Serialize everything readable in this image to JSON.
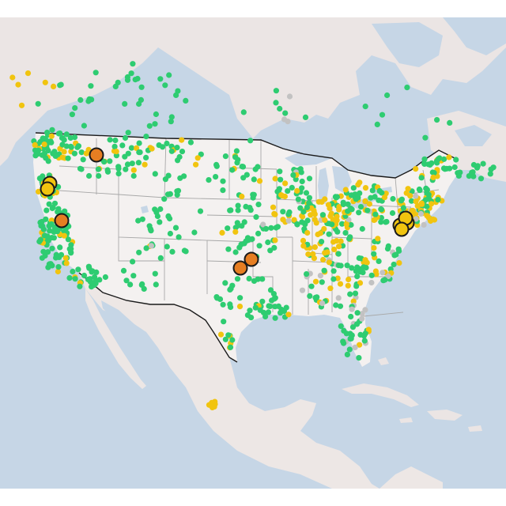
{
  "map": {
    "basemap_colors": {
      "water": "#c6d6e6",
      "land": "#ebe5e4",
      "land_mexico": "#ede7e5",
      "us_fill": "#f4f1f0",
      "state_border": "#a8a8a8",
      "national_border": "#1a1a1a",
      "lake": "#c6d6e6"
    },
    "layers": {
      "minor": {
        "radius": 3.6,
        "colors": {
          "green": "#2ecc71",
          "yellow": "#f1c40f",
          "gray": "#c2c2c2"
        }
      },
      "major": {
        "radius": 8.5,
        "stroke": "#1a1a1a",
        "colors": {
          "orange": "#e67e22",
          "yellow": "#f1c40f"
        }
      }
    },
    "major_markers": [
      {
        "name": "sacramento-area",
        "color": "orange"
      },
      {
        "name": "spokane-area",
        "color": "orange"
      },
      {
        "name": "oregon-coast-1",
        "color": "yellow"
      },
      {
        "name": "oregon-coast-2",
        "color": "yellow"
      },
      {
        "name": "oklahoma-city-1",
        "color": "orange"
      },
      {
        "name": "oklahoma-city-2",
        "color": "orange"
      },
      {
        "name": "northeast-1",
        "color": "yellow"
      },
      {
        "name": "northeast-2",
        "color": "yellow"
      },
      {
        "name": "northeast-3",
        "color": "yellow"
      },
      {
        "name": "northeast-4",
        "color": "yellow"
      }
    ]
  }
}
